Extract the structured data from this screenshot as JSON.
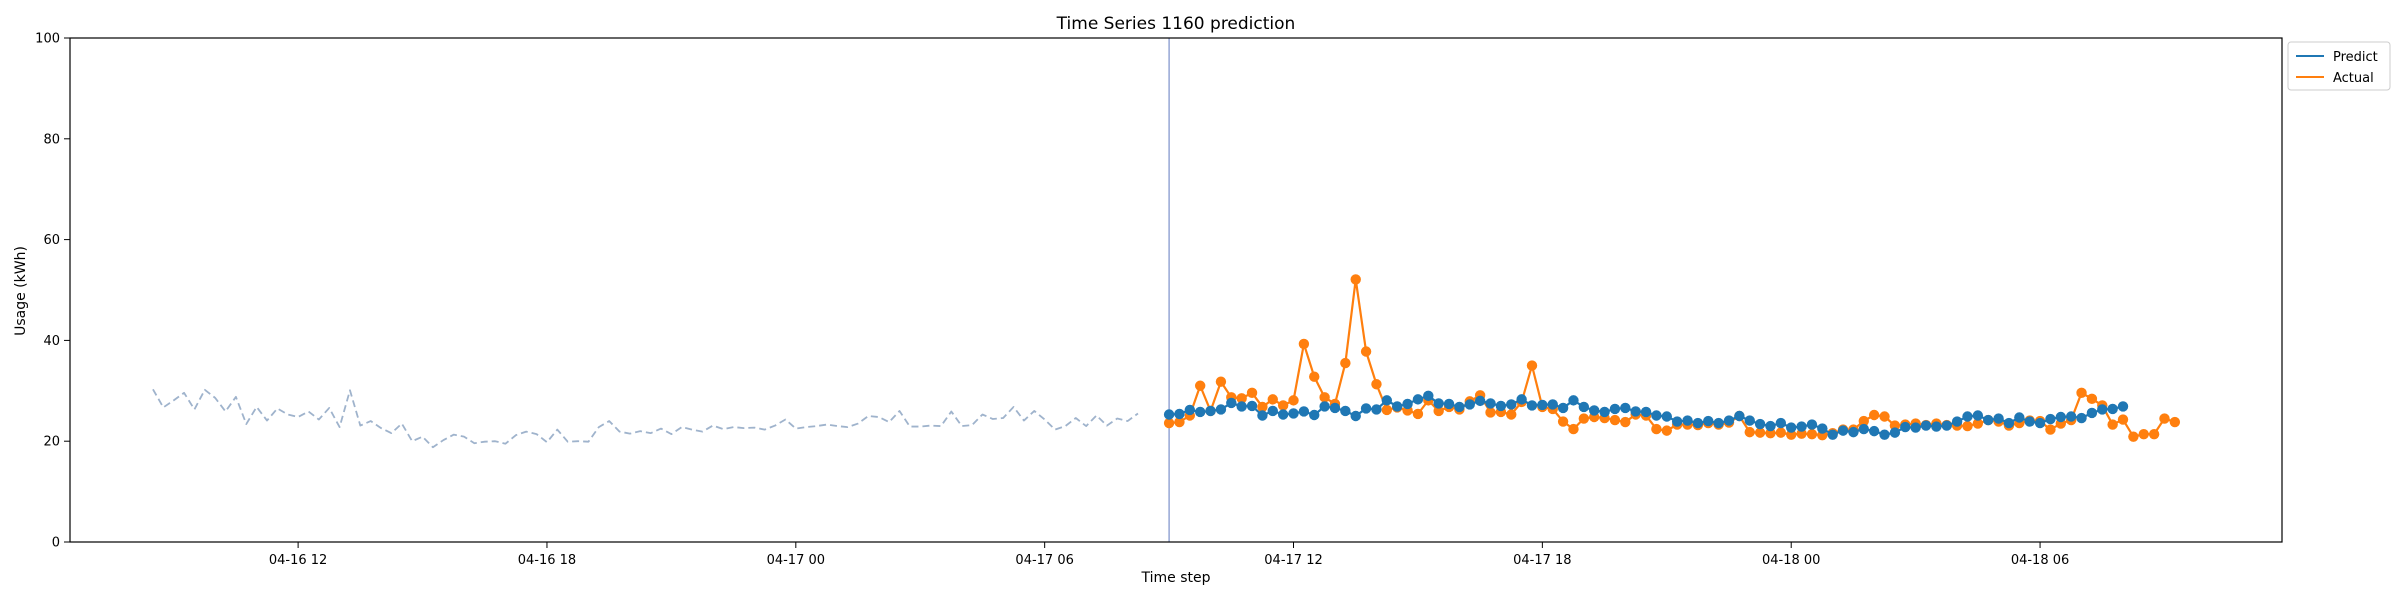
{
  "chart_data": {
    "type": "line",
    "title": "Time Series 1160 prediction",
    "xlabel": "Time step",
    "ylabel": "Usage (kWh)",
    "ylim": [
      0,
      100
    ],
    "xlim": [
      "2026-04-16 06:30",
      "2026-04-18 11:50"
    ],
    "x_ticks": [
      "04-16 12",
      "04-16 18",
      "04-17 00",
      "04-17 06",
      "04-17 12",
      "04-17 18",
      "04-18 00",
      "04-18 06"
    ],
    "y_ticks": [
      0,
      20,
      40,
      60,
      80,
      100
    ],
    "grid": false,
    "legend_position": "outside-top-right",
    "forecast_start": "2026-04-17 09:00",
    "colors": {
      "history": "#9fb3cc",
      "predict": "#1f77b4",
      "actual": "#ff7f0e",
      "divider": "#7b8fc9"
    },
    "series": [
      {
        "name": "",
        "style": "dashed",
        "start": "2026-04-16 08:30",
        "step_minutes": 15,
        "values": [
          30.3,
          26.7,
          28.1,
          29.6,
          26.3,
          30.2,
          28.6,
          25.9,
          28.8,
          23.4,
          26.8,
          24.1,
          26.5,
          25.3,
          24.8,
          25.9,
          24.3,
          26.6,
          22.8,
          30.1,
          23.1,
          24.0,
          22.6,
          21.6,
          23.5,
          20.0,
          20.9,
          18.8,
          20.2,
          21.3,
          20.9,
          19.6,
          19.9,
          20.0,
          19.5,
          21.2,
          21.9,
          21.4,
          19.8,
          22.3,
          19.9,
          20.0,
          19.9,
          22.8,
          24.0,
          21.9,
          21.5,
          22.0,
          21.6,
          22.5,
          21.4,
          22.8,
          22.3,
          21.9,
          23.1,
          22.4,
          22.8,
          22.6,
          22.7,
          22.3,
          23.1,
          24.3,
          22.5,
          22.8,
          23.0,
          23.3,
          23.0,
          22.8,
          23.5,
          25.0,
          24.8,
          23.8,
          26.0,
          22.9,
          22.9,
          23.1,
          23.0,
          25.9,
          23.0,
          23.2,
          25.3,
          24.4,
          24.6,
          26.8,
          24.1,
          26.0,
          24.3,
          22.3,
          23.0,
          24.6,
          23.0,
          25.1,
          23.1,
          24.5,
          24.0,
          25.5
        ]
      },
      {
        "name": "Predict",
        "style": "line-markers",
        "start": "2026-04-17 09:00",
        "step_minutes": 15,
        "values": [
          25.3,
          25.4,
          26.2,
          25.8,
          26.0,
          26.3,
          27.6,
          26.9,
          27.0,
          25.1,
          26.0,
          25.3,
          25.5,
          25.9,
          25.2,
          26.9,
          26.6,
          26.0,
          25.0,
          26.5,
          26.3,
          28.1,
          26.9,
          27.4,
          28.3,
          29.0,
          27.5,
          27.4,
          26.8,
          27.3,
          28.0,
          27.5,
          27.0,
          27.3,
          28.3,
          27.1,
          27.2,
          27.3,
          26.6,
          28.1,
          26.8,
          26.1,
          25.8,
          26.4,
          26.6,
          25.9,
          25.8,
          25.1,
          24.9,
          23.9,
          24.1,
          23.6,
          24.0,
          23.6,
          24.1,
          25.0,
          24.1,
          23.4,
          23.0,
          23.6,
          22.7,
          22.9,
          23.3,
          22.5,
          21.3,
          22.1,
          21.8,
          22.4,
          22.0,
          21.3,
          21.7,
          22.8,
          22.7,
          23.1,
          22.9,
          23.1,
          23.9,
          24.9,
          25.1,
          24.2,
          24.5,
          23.6,
          24.7,
          23.9,
          23.6,
          24.4,
          24.8,
          24.9,
          24.6,
          25.6,
          26.3,
          26.4,
          26.9
        ]
      },
      {
        "name": "Actual",
        "style": "line-markers",
        "start": "2026-04-17 09:00",
        "step_minutes": 15,
        "values": [
          23.6,
          23.8,
          25.1,
          31.0,
          26.0,
          31.8,
          28.7,
          28.5,
          29.6,
          26.8,
          28.3,
          27.1,
          28.1,
          39.3,
          32.8,
          28.7,
          27.4,
          35.5,
          52.1,
          37.8,
          31.3,
          26.2,
          26.7,
          26.1,
          25.4,
          28.1,
          26.0,
          26.8,
          26.3,
          27.9,
          29.1,
          25.7,
          25.8,
          25.3,
          27.8,
          35.0,
          26.8,
          26.4,
          23.9,
          22.4,
          24.5,
          24.8,
          24.6,
          24.2,
          23.8,
          25.3,
          25.1,
          22.4,
          22.1,
          23.3,
          23.3,
          23.2,
          23.6,
          23.3,
          23.7,
          25.0,
          21.8,
          21.7,
          21.6,
          21.7,
          21.3,
          21.5,
          21.4,
          21.2,
          21.6,
          22.3,
          22.3,
          24.0,
          25.2,
          24.9,
          23.1,
          23.3,
          23.5,
          23.2,
          23.5,
          23.2,
          23.1,
          23.0,
          23.5,
          24.2,
          23.9,
          23.1,
          23.6,
          24.1,
          24.0,
          22.3,
          23.5,
          24.2,
          29.6,
          28.4,
          27.1,
          23.3,
          24.3,
          20.9,
          21.4,
          21.4,
          24.5,
          23.8
        ]
      }
    ]
  }
}
